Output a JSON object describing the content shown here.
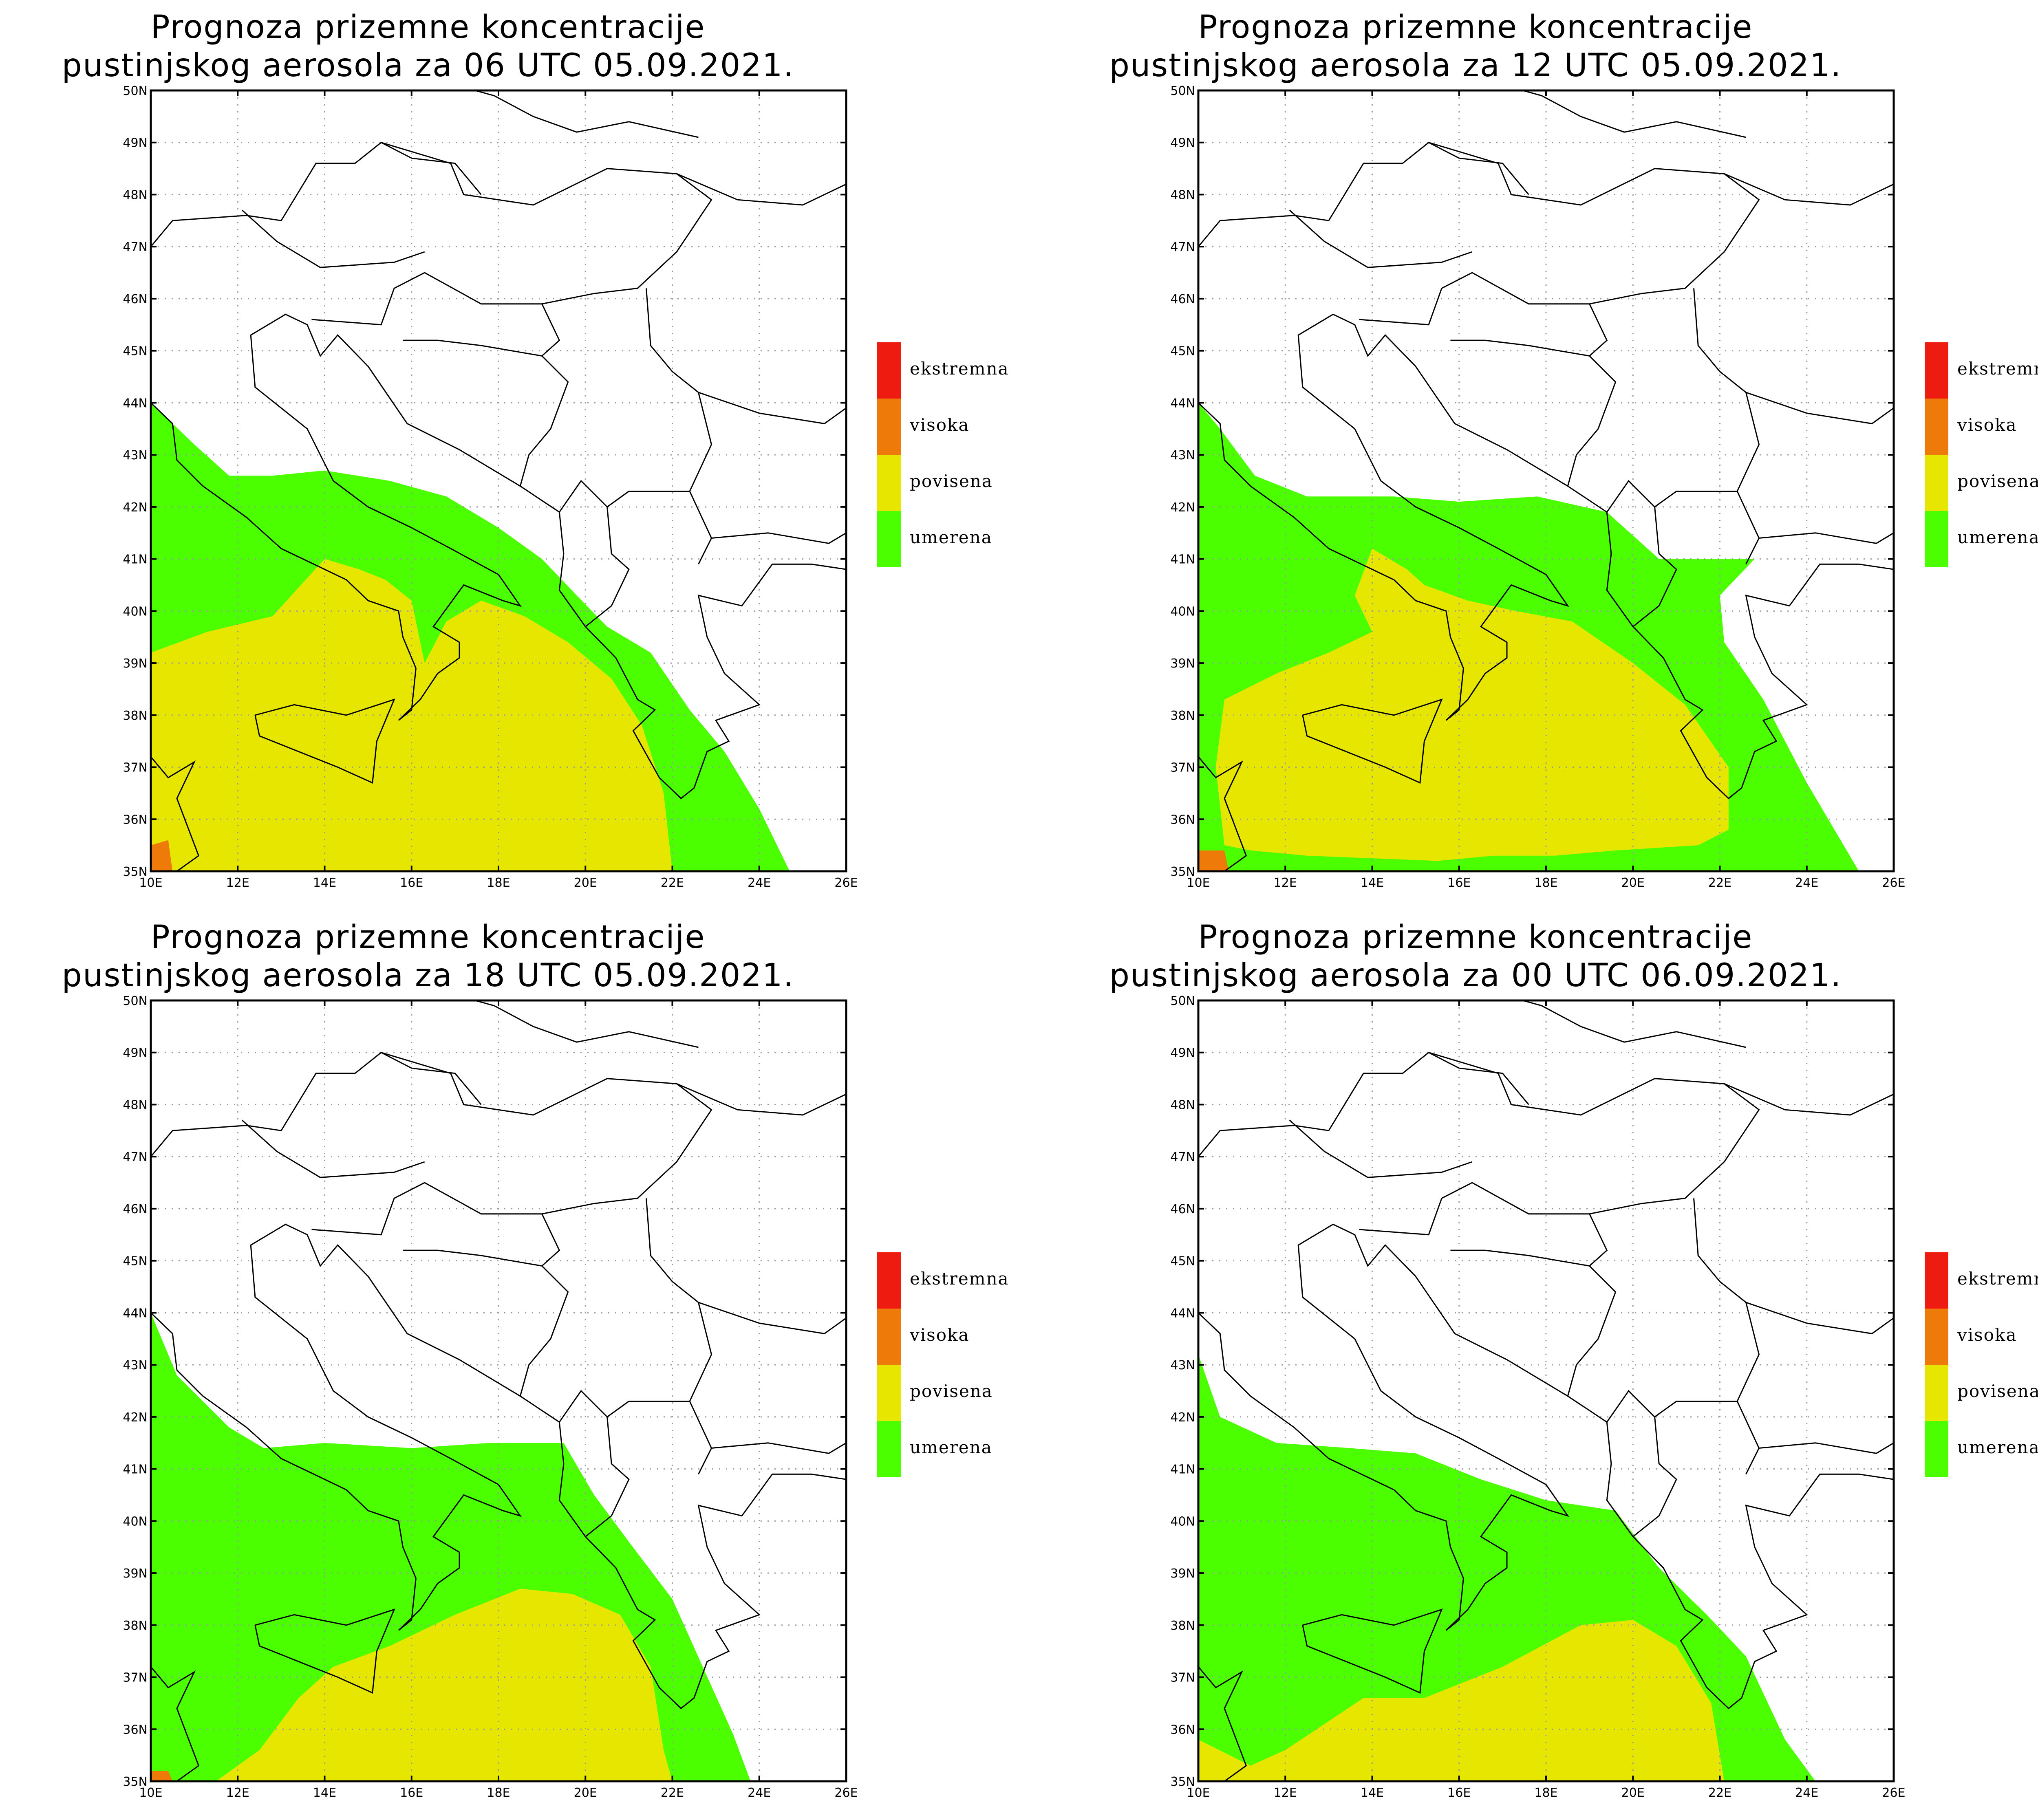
{
  "colors": {
    "ekstremna": "#ee1c10",
    "visoka": "#ee7a0a",
    "povisena": "#e6e600",
    "umerena": "#4cff00",
    "border": "#000000",
    "grid": "#999999"
  },
  "map": {
    "lon_range": [
      10,
      26
    ],
    "lat_range": [
      35,
      50
    ],
    "lat_ticks": [
      "35N",
      "36N",
      "37N",
      "38N",
      "39N",
      "40N",
      "41N",
      "42N",
      "43N",
      "44N",
      "45N",
      "46N",
      "47N",
      "48N",
      "49N",
      "50N"
    ],
    "lon_ticks": [
      "10E",
      "12E",
      "14E",
      "16E",
      "18E",
      "20E",
      "22E",
      "24E",
      "26E"
    ]
  },
  "legend": [
    {
      "label": "ekstremna",
      "color": "#ee1c10"
    },
    {
      "label": "visoka",
      "color": "#ee7a0a"
    },
    {
      "label": "povisena",
      "color": "#e6e600"
    },
    {
      "label": "umerena",
      "color": "#4cff00"
    }
  ],
  "panels": [
    {
      "title_line1": "Prognoza prizemne koncentracije",
      "title_line2": "pustinjskog aerosola za 06 UTC 05.09.2021."
    },
    {
      "title_line1": "Prognoza prizemne koncentracije",
      "title_line2": "pustinjskog aerosola za 12 UTC 05.09.2021."
    },
    {
      "title_line1": "Prognoza prizemne koncentracije",
      "title_line2": "pustinjskog aerosola za 18 UTC 05.09.2021."
    },
    {
      "title_line1": "Prognoza prizemne koncentracije",
      "title_line2": "pustinjskog aerosola za 00 UTC 06.09.2021."
    }
  ]
}
